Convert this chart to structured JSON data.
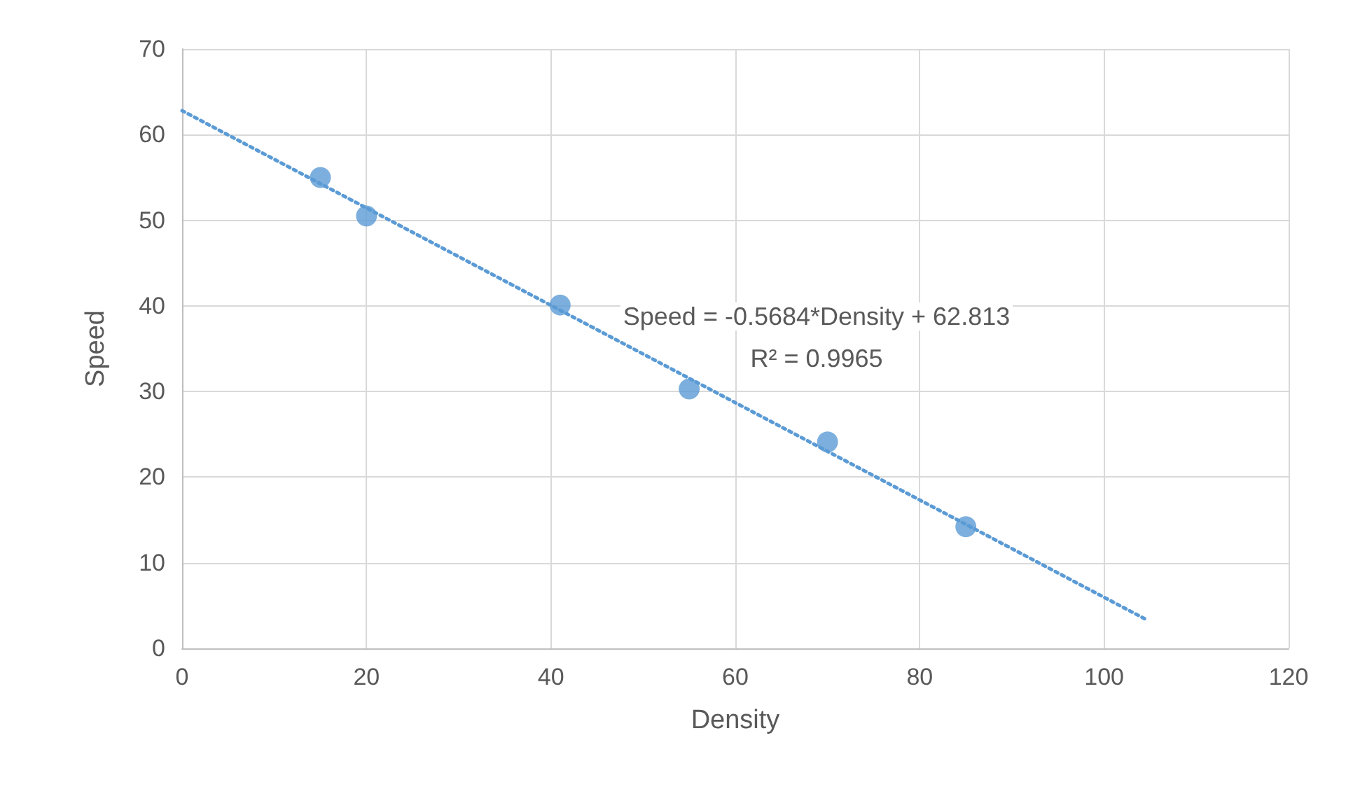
{
  "chart_data": {
    "type": "scatter",
    "xlabel": "Density",
    "ylabel": "Speed",
    "xlim": [
      0,
      120
    ],
    "xticks": [
      0,
      20,
      40,
      60,
      80,
      100,
      120
    ],
    "ylim": [
      0,
      70
    ],
    "yticks": [
      0,
      10,
      20,
      30,
      40,
      50,
      60,
      70
    ],
    "grid": true,
    "annotations": [
      "Speed = -0.5684*Density + 62.813",
      "R² = 0.9965"
    ],
    "series": [
      {
        "color": "#5b9bd5",
        "marker": "circle",
        "x": [
          15,
          20,
          41,
          55,
          70,
          85
        ],
        "values": [
          55,
          50.5,
          40.1,
          30.3,
          24.1,
          14.2
        ]
      },
      {
        "type": "line",
        "color": "#5b9bd5",
        "marker": "none",
        "line_style": "dotted",
        "x": [
          0,
          104.5
        ],
        "values": [
          62.8,
          3.4
        ]
      }
    ]
  }
}
